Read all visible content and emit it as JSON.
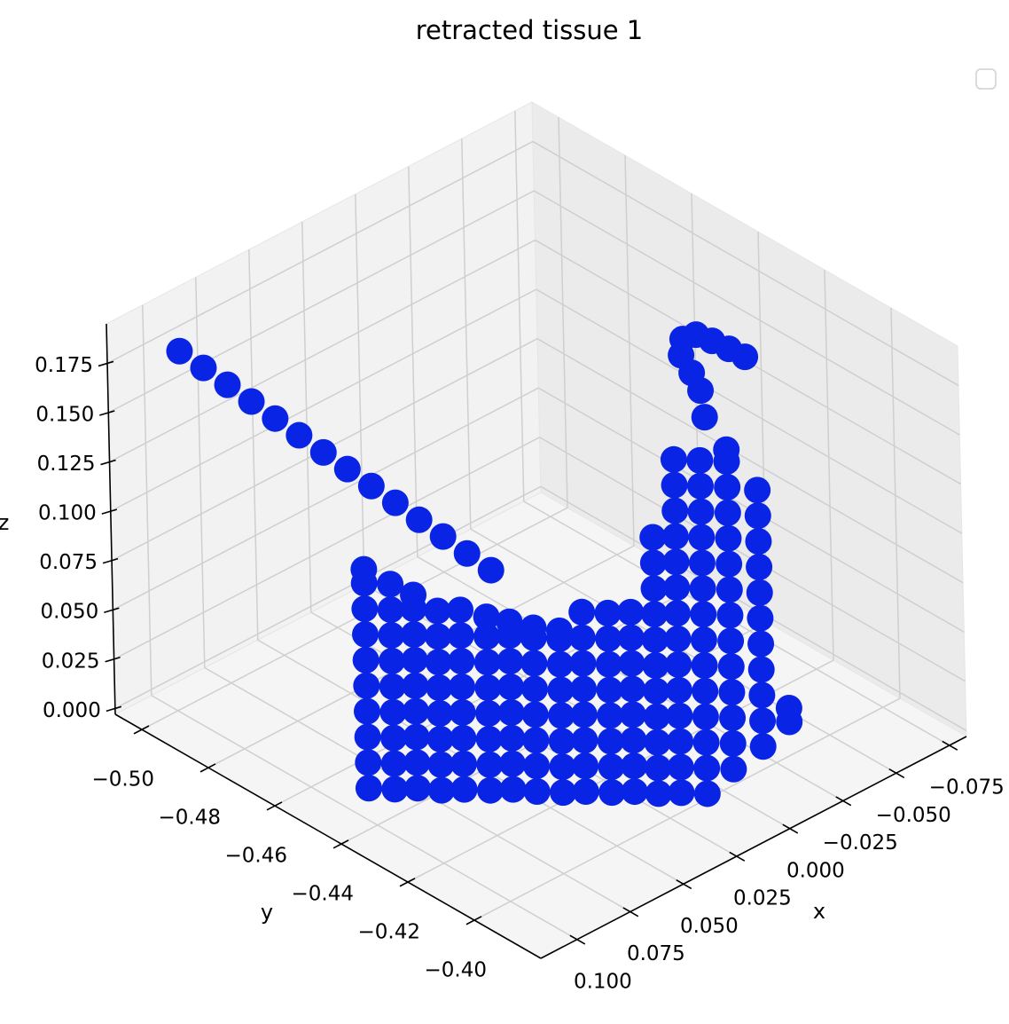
{
  "chart_data": {
    "type": "scatter3d",
    "title": "retracted tissue 1",
    "xlabel": "x",
    "ylabel": "y",
    "zlabel": "z",
    "xlim": [
      -0.083,
      0.117
    ],
    "ylim": [
      -0.508,
      -0.38
    ],
    "zlim": [
      -0.003,
      0.195
    ],
    "xticks": [
      {
        "value": -0.075,
        "label": "−0.075"
      },
      {
        "value": -0.05,
        "label": "−0.050"
      },
      {
        "value": -0.025,
        "label": "−0.025"
      },
      {
        "value": 0,
        "label": "0.000"
      },
      0.025,
      {
        "value": 0.05,
        "label": "0.050"
      },
      0.075,
      {
        "value": 0.1,
        "label": "0.100"
      }
    ],
    "yticks": [
      {
        "value": -0.5,
        "label": "−0.50"
      },
      {
        "value": -0.48,
        "label": "−0.48"
      },
      {
        "value": -0.46,
        "label": "−0.46"
      },
      {
        "value": -0.44,
        "label": "−0.44"
      },
      {
        "value": -0.42,
        "label": "−0.42"
      },
      {
        "value": -0.4,
        "label": "−0.40"
      }
    ],
    "zticks": [
      {
        "value": 0,
        "label": "0.000"
      },
      0.025,
      {
        "value": 0.05,
        "label": "0.050"
      },
      0.075,
      {
        "value": 0.1,
        "label": "0.100"
      },
      0.125,
      {
        "value": 0.15,
        "label": "0.150"
      },
      0.175
    ],
    "grid": true,
    "legend": "upper right",
    "series": [
      {
        "color": "#0a24e6",
        "x": [
          0.094,
          0.0896,
          0.0852,
          0.0808,
          0.0765,
          0.0721,
          0.0677,
          0.0633,
          0.0589,
          0.0545,
          0.0502,
          0.0458,
          0.0414,
          0.037,
          0.093,
          0.093,
          0.093,
          0.093,
          0.093,
          0.093,
          0.093,
          0.093,
          0.093,
          0.093,
          0.087,
          0.087,
          0.087,
          0.087,
          0.087,
          0.087,
          0.087,
          0.087,
          0.087,
          0.081,
          0.081,
          0.081,
          0.081,
          0.081,
          0.081,
          0.081,
          0.081,
          0.081,
          0.076,
          0.076,
          0.076,
          0.076,
          0.076,
          0.076,
          0.076,
          0.076,
          0.07,
          0.07,
          0.07,
          0.07,
          0.07,
          0.07,
          0.07,
          0.07,
          0.064,
          0.064,
          0.064,
          0.064,
          0.064,
          0.064,
          0.064,
          0.064,
          0.058,
          0.058,
          0.058,
          0.058,
          0.058,
          0.058,
          0.058,
          0.058,
          0.053,
          0.053,
          0.053,
          0.053,
          0.053,
          0.053,
          0.053,
          0.053,
          0.047,
          0.047,
          0.047,
          0.047,
          0.047,
          0.047,
          0.047,
          0.047,
          0.041,
          0.041,
          0.041,
          0.041,
          0.041,
          0.041,
          0.041,
          0.041,
          0.035,
          0.035,
          0.035,
          0.035,
          0.035,
          0.035,
          0.035,
          0.035,
          0.029,
          0.029,
          0.029,
          0.029,
          0.029,
          0.029,
          0.029,
          0.029,
          0.024,
          0.024,
          0.024,
          0.024,
          0.024,
          0.024,
          0.024,
          0.024,
          0.024,
          0.024,
          0.024,
          0.018,
          0.018,
          0.018,
          0.018,
          0.018,
          0.018,
          0.018,
          0.018,
          0.018,
          0.018,
          0.018,
          0.018,
          0.018,
          0.018,
          0.012,
          0.012,
          0.012,
          0.012,
          0.012,
          0.012,
          0.012,
          0.012,
          0.012,
          0.012,
          0.012,
          0.012,
          0.012,
          0.012,
          -0.005,
          -0.005,
          -0.005,
          -0.005,
          -0.005,
          -0.005,
          -0.005,
          -0.005,
          -0.005,
          -0.005,
          -0.005,
          -0.005,
          -0.005,
          -0.005,
          -0.022,
          -0.022,
          -0.022,
          -0.022,
          -0.022,
          -0.022,
          -0.022,
          -0.022,
          -0.022,
          -0.022,
          -0.022,
          -0.039,
          -0.039,
          -0.0111,
          -0.0215,
          -0.0269,
          -0.0319,
          -0.0392,
          -0.0444,
          -0.0457,
          -0.0464,
          -0.0469
        ],
        "y": [
          -0.501,
          -0.4967,
          -0.4924,
          -0.4881,
          -0.4838,
          -0.4795,
          -0.4751,
          -0.4708,
          -0.4665,
          -0.4622,
          -0.4579,
          -0.4536,
          -0.4493,
          -0.445,
          -0.447,
          -0.447,
          -0.447,
          -0.447,
          -0.447,
          -0.447,
          -0.447,
          -0.447,
          -0.447,
          -0.447,
          -0.443,
          -0.443,
          -0.443,
          -0.443,
          -0.443,
          -0.443,
          -0.443,
          -0.443,
          -0.443,
          -0.44,
          -0.44,
          -0.44,
          -0.44,
          -0.44,
          -0.44,
          -0.44,
          -0.44,
          -0.44,
          -0.436,
          -0.436,
          -0.436,
          -0.436,
          -0.436,
          -0.436,
          -0.436,
          -0.436,
          -0.433,
          -0.433,
          -0.433,
          -0.433,
          -0.433,
          -0.433,
          -0.433,
          -0.433,
          -0.429,
          -0.429,
          -0.429,
          -0.429,
          -0.429,
          -0.429,
          -0.429,
          -0.429,
          -0.426,
          -0.426,
          -0.426,
          -0.426,
          -0.426,
          -0.426,
          -0.426,
          -0.426,
          -0.422,
          -0.422,
          -0.422,
          -0.422,
          -0.422,
          -0.422,
          -0.422,
          -0.422,
          -0.418,
          -0.418,
          -0.418,
          -0.418,
          -0.418,
          -0.418,
          -0.418,
          -0.418,
          -0.415,
          -0.415,
          -0.415,
          -0.415,
          -0.415,
          -0.415,
          -0.415,
          -0.415,
          -0.411,
          -0.411,
          -0.411,
          -0.411,
          -0.411,
          -0.411,
          -0.411,
          -0.411,
          -0.408,
          -0.408,
          -0.408,
          -0.408,
          -0.408,
          -0.408,
          -0.408,
          -0.408,
          -0.404,
          -0.404,
          -0.404,
          -0.404,
          -0.404,
          -0.404,
          -0.404,
          -0.404,
          -0.404,
          -0.404,
          -0.404,
          -0.401,
          -0.401,
          -0.401,
          -0.401,
          -0.401,
          -0.401,
          -0.401,
          -0.401,
          -0.401,
          -0.401,
          -0.401,
          -0.401,
          -0.401,
          -0.401,
          -0.397,
          -0.397,
          -0.397,
          -0.397,
          -0.397,
          -0.397,
          -0.397,
          -0.397,
          -0.397,
          -0.397,
          -0.397,
          -0.397,
          -0.397,
          -0.397,
          -0.4,
          -0.4,
          -0.4,
          -0.4,
          -0.4,
          -0.4,
          -0.4,
          -0.4,
          -0.4,
          -0.4,
          -0.4,
          -0.4,
          -0.4,
          -0.4,
          -0.402,
          -0.402,
          -0.402,
          -0.402,
          -0.402,
          -0.402,
          -0.402,
          -0.402,
          -0.402,
          -0.402,
          -0.402,
          -0.405,
          -0.405,
          -0.4104,
          -0.4183,
          -0.4244,
          -0.4308,
          -0.435,
          -0.4343,
          -0.4303,
          -0.4257,
          -0.4212
        ],
        "z": [
          0.175,
          0.1682,
          0.1613,
          0.1545,
          0.1476,
          0.1408,
          0.1339,
          0.1271,
          0.1202,
          0.1134,
          0.1065,
          0.0997,
          0.0928,
          0.086,
          0.005,
          0.018,
          0.031,
          0.044,
          0.057,
          0.07,
          0.083,
          0.096,
          0.109,
          0.116,
          0.005,
          0.018,
          0.031,
          0.044,
          0.057,
          0.07,
          0.083,
          0.096,
          0.109,
          0.005,
          0.018,
          0.031,
          0.044,
          0.057,
          0.07,
          0.083,
          0.096,
          0.103,
          0.005,
          0.018,
          0.031,
          0.044,
          0.057,
          0.07,
          0.083,
          0.096,
          0.005,
          0.018,
          0.031,
          0.044,
          0.057,
          0.07,
          0.083,
          0.096,
          0.005,
          0.018,
          0.031,
          0.044,
          0.057,
          0.07,
          0.083,
          0.093,
          0.005,
          0.018,
          0.031,
          0.044,
          0.057,
          0.07,
          0.083,
          0.09,
          0.005,
          0.018,
          0.031,
          0.044,
          0.057,
          0.07,
          0.083,
          0.088,
          0.005,
          0.018,
          0.031,
          0.044,
          0.057,
          0.07,
          0.083,
          0.087,
          0.005,
          0.018,
          0.031,
          0.044,
          0.057,
          0.07,
          0.083,
          0.096,
          0.005,
          0.018,
          0.031,
          0.044,
          0.057,
          0.07,
          0.083,
          0.096,
          0.005,
          0.018,
          0.031,
          0.044,
          0.057,
          0.07,
          0.083,
          0.096,
          0.005,
          0.018,
          0.031,
          0.044,
          0.057,
          0.07,
          0.083,
          0.096,
          0.109,
          0.122,
          0.135,
          0.005,
          0.018,
          0.031,
          0.044,
          0.057,
          0.07,
          0.083,
          0.096,
          0.109,
          0.122,
          0.135,
          0.148,
          0.161,
          0.174,
          0.005,
          0.018,
          0.031,
          0.044,
          0.057,
          0.07,
          0.083,
          0.096,
          0.109,
          0.122,
          0.135,
          0.148,
          0.161,
          0.174,
          0.005,
          0.018,
          0.031,
          0.044,
          0.057,
          0.07,
          0.083,
          0.096,
          0.109,
          0.122,
          0.135,
          0.148,
          0.161,
          0.167,
          0.005,
          0.018,
          0.031,
          0.044,
          0.057,
          0.07,
          0.083,
          0.096,
          0.109,
          0.122,
          0.135,
          0.005,
          0.012,
          0.17,
          0.17,
          0.17,
          0.17,
          0.17,
          0.17,
          0.17,
          0.17,
          0.17
        ]
      }
    ]
  }
}
